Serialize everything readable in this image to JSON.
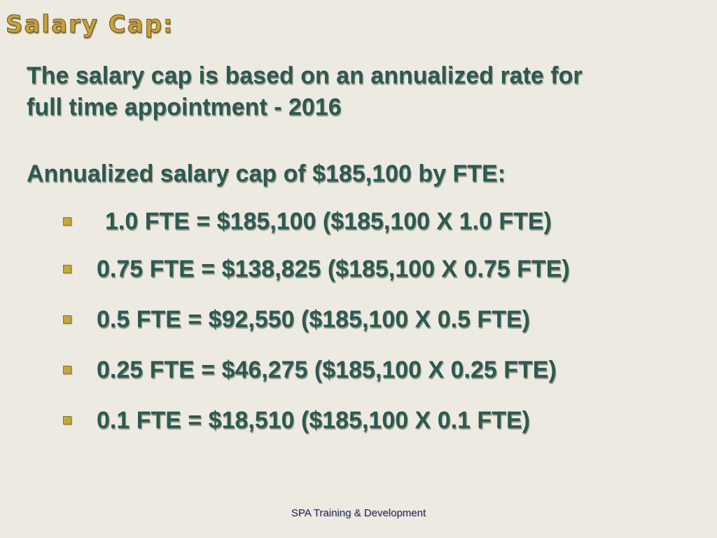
{
  "slide": {
    "title": "Salary Cap:",
    "intro_lines": [
      "The salary cap is based on an annualized rate for",
      "full time appointment - 2016"
    ],
    "cap_heading": "Annualized salary cap of $185,100 by FTE:",
    "fte_items": [
      "1.0 FTE = $185,100 ($185,100 X 1.0 FTE)",
      "0.75 FTE = $138,825 ($185,100 X 0.75 FTE)",
      "0.5 FTE = $92,550 ($185,100 X 0.5 FTE)",
      "0.25 FTE = $46,275 ($185,100 X 0.25 FTE)",
      "0.1 FTE = $18,510 ($185,100 X 0.1 FTE)"
    ],
    "footer": "SPA Training & Development"
  },
  "colors": {
    "background": "#edeae1",
    "title_gold": "#c7a13a",
    "body_green": "#2c5a4f",
    "bullet_gold": "#c2a83c",
    "footer_navy": "#2a2a6a"
  },
  "icons": {
    "bullet": "square-bullet-icon"
  }
}
